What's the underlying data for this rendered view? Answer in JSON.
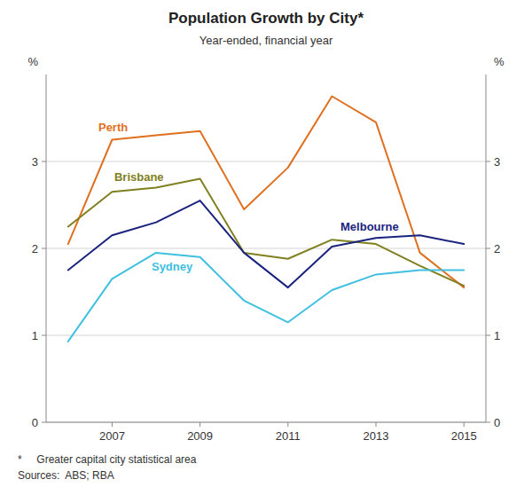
{
  "chart_data": {
    "type": "line",
    "title": "Population Growth by City*",
    "subtitle": "Year-ended, financial year",
    "ylabel": "%",
    "y2label": "%",
    "footnotes": [
      "*     Greater capital city statistical area",
      "Sources:  ABS; RBA"
    ],
    "x": [
      2006,
      2007,
      2008,
      2009,
      2010,
      2011,
      2012,
      2013,
      2014,
      2015
    ],
    "series": [
      {
        "name": "Perth",
        "color": "#e07020",
        "values": [
          2.05,
          3.25,
          3.3,
          3.35,
          2.45,
          2.93,
          3.75,
          3.45,
          1.95,
          1.55
        ]
      },
      {
        "name": "Brisbane",
        "color": "#808020",
        "values": [
          2.25,
          2.65,
          2.7,
          2.8,
          1.95,
          1.88,
          2.1,
          2.05,
          1.8,
          1.57
        ]
      },
      {
        "name": "Melbourne",
        "color": "#1a237e",
        "values": [
          1.75,
          2.15,
          2.3,
          2.55,
          1.95,
          1.55,
          2.02,
          2.12,
          2.15,
          2.05
        ]
      },
      {
        "name": "Sydney",
        "color": "#40c0e0",
        "values": [
          0.93,
          1.65,
          1.95,
          1.9,
          1.4,
          1.15,
          1.52,
          1.7,
          1.75,
          1.75
        ]
      }
    ],
    "xlim": [
      2005.5,
      2015.5
    ],
    "xticks": [
      2007,
      2009,
      2011,
      2013,
      2015
    ],
    "ylim": [
      0,
      4.0
    ],
    "yticks": [
      0,
      1,
      2,
      3
    ],
    "y2lim": [
      0,
      4.0
    ],
    "y2ticks": [
      0,
      1,
      2,
      3
    ],
    "grid": true
  }
}
